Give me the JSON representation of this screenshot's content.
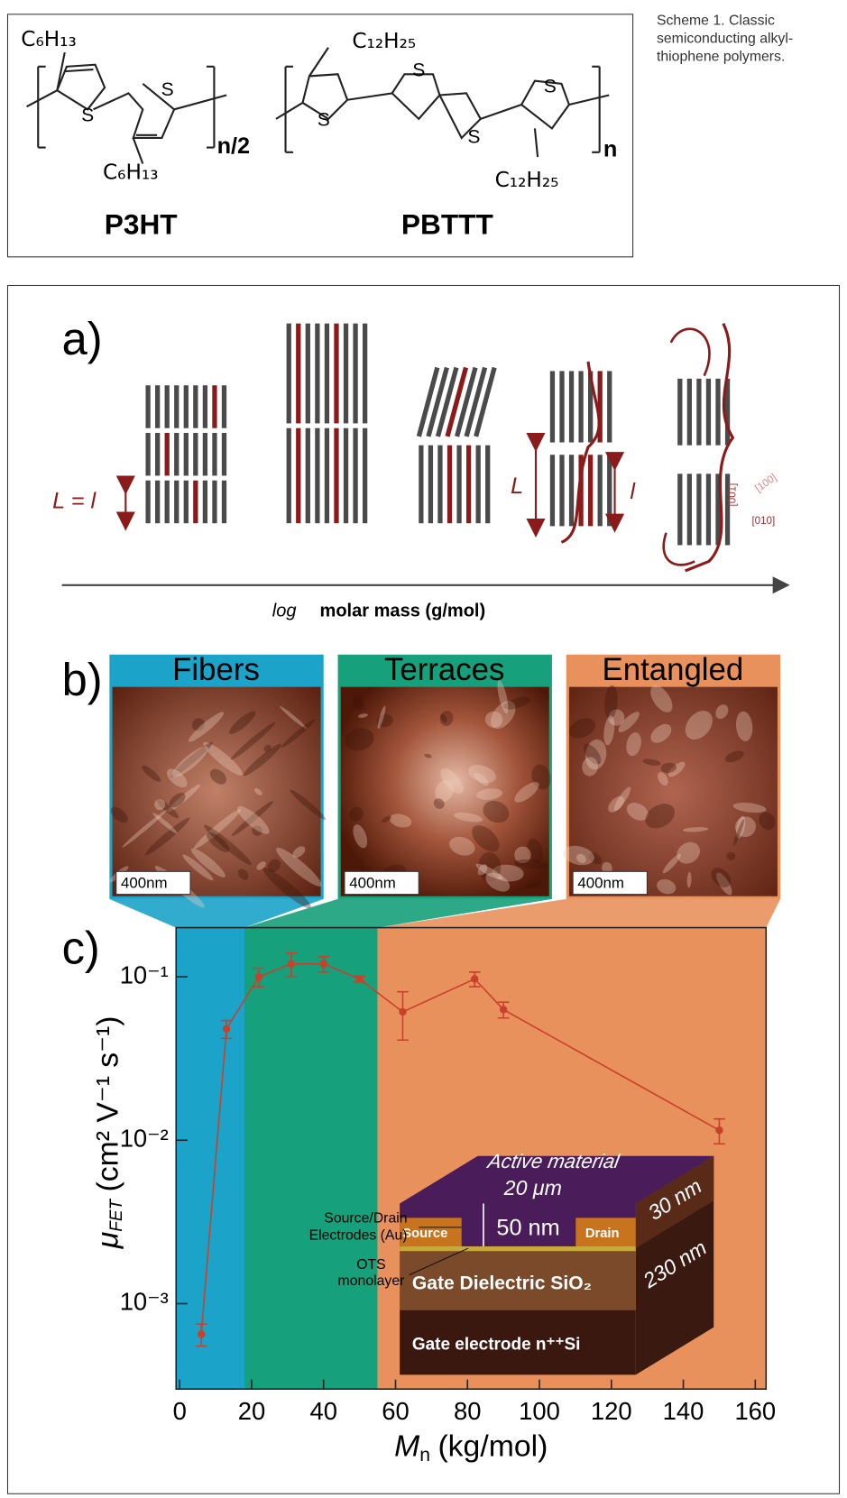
{
  "scheme": {
    "p3ht": {
      "substituents": [
        "C₆H₁₃",
        "C₆H₁₃"
      ],
      "sulfur": [
        "S",
        "S"
      ],
      "repeat": "n/2",
      "name": "P3HT"
    },
    "pbttt": {
      "substituents": [
        "C₁₂H₂₅",
        "C₁₂H₂₅"
      ],
      "sulfur": [
        "S",
        "S",
        "S",
        "S"
      ],
      "repeat": "n",
      "name": "PBTTT"
    },
    "caption": [
      "Scheme 1. Classic",
      "semiconducting alkyl-",
      "thiophene polymers."
    ]
  },
  "panel_a": {
    "label": "a)",
    "lengths": [
      "L = l",
      "L",
      "l"
    ],
    "directions": [
      "[001]",
      "[100]",
      "[010]"
    ],
    "axis_prefix": "log",
    "axis_label": "molar mass (g/mol)"
  },
  "panel_b": {
    "label": "b)",
    "morphologies": [
      {
        "name": "Fibers",
        "color": "#1ca3c9",
        "scale": "400nm"
      },
      {
        "name": "Terraces",
        "color": "#16a07b",
        "scale": "400nm"
      },
      {
        "name": "Entangled",
        "color": "#e8915c",
        "scale": "400nm"
      }
    ]
  },
  "chart_data": {
    "type": "errorline",
    "panel_label": "c)",
    "x_label": {
      "symbol": "M",
      "subscript": "n",
      "unit": "(kg/mol)"
    },
    "y_label": {
      "symbol": "μ",
      "subscript": "FET",
      "unit": "(cm² V⁻¹ s⁻¹)"
    },
    "xlim": [
      -1,
      163
    ],
    "xticks": [
      0,
      20,
      40,
      60,
      80,
      100,
      120,
      140,
      160
    ],
    "ylim": [
      0.0003,
      0.2
    ],
    "log_y": true,
    "yticks": [
      {
        "value": 0.001,
        "label": "10⁻³"
      },
      {
        "value": 0.01,
        "label": "10⁻²"
      },
      {
        "value": 0.1,
        "label": "10⁻¹"
      }
    ],
    "region_edges": [
      18,
      55
    ],
    "region_colors": [
      "#1ca3c9",
      "#16a07b",
      "#e8915c"
    ],
    "series": [
      {
        "color": "#c8412b",
        "x": [
          6,
          13,
          22,
          31,
          40,
          50,
          62,
          82,
          90,
          150
        ],
        "values": [
          0.00065,
          0.048,
          0.1,
          0.12,
          0.12,
          0.097,
          0.061,
          0.097,
          0.063,
          0.0115
        ],
        "errors": [
          0.0001,
          0.006,
          0.013,
          0.02,
          0.013,
          0.004,
          0.02,
          0.01,
          0.007,
          0.002
        ]
      }
    ],
    "inset": {
      "layers": [
        "Active material",
        "Gate Dielectric SiO₂",
        "Gate electrode n⁺⁺Si"
      ],
      "electrodes": [
        "Source",
        "Drain"
      ],
      "dimensions": [
        "20 μm",
        "50 nm",
        "30 nm",
        "230 nm"
      ],
      "callouts": [
        "Source/Drain",
        "Electrodes (Au)",
        "OTS",
        "monolayer"
      ]
    }
  }
}
